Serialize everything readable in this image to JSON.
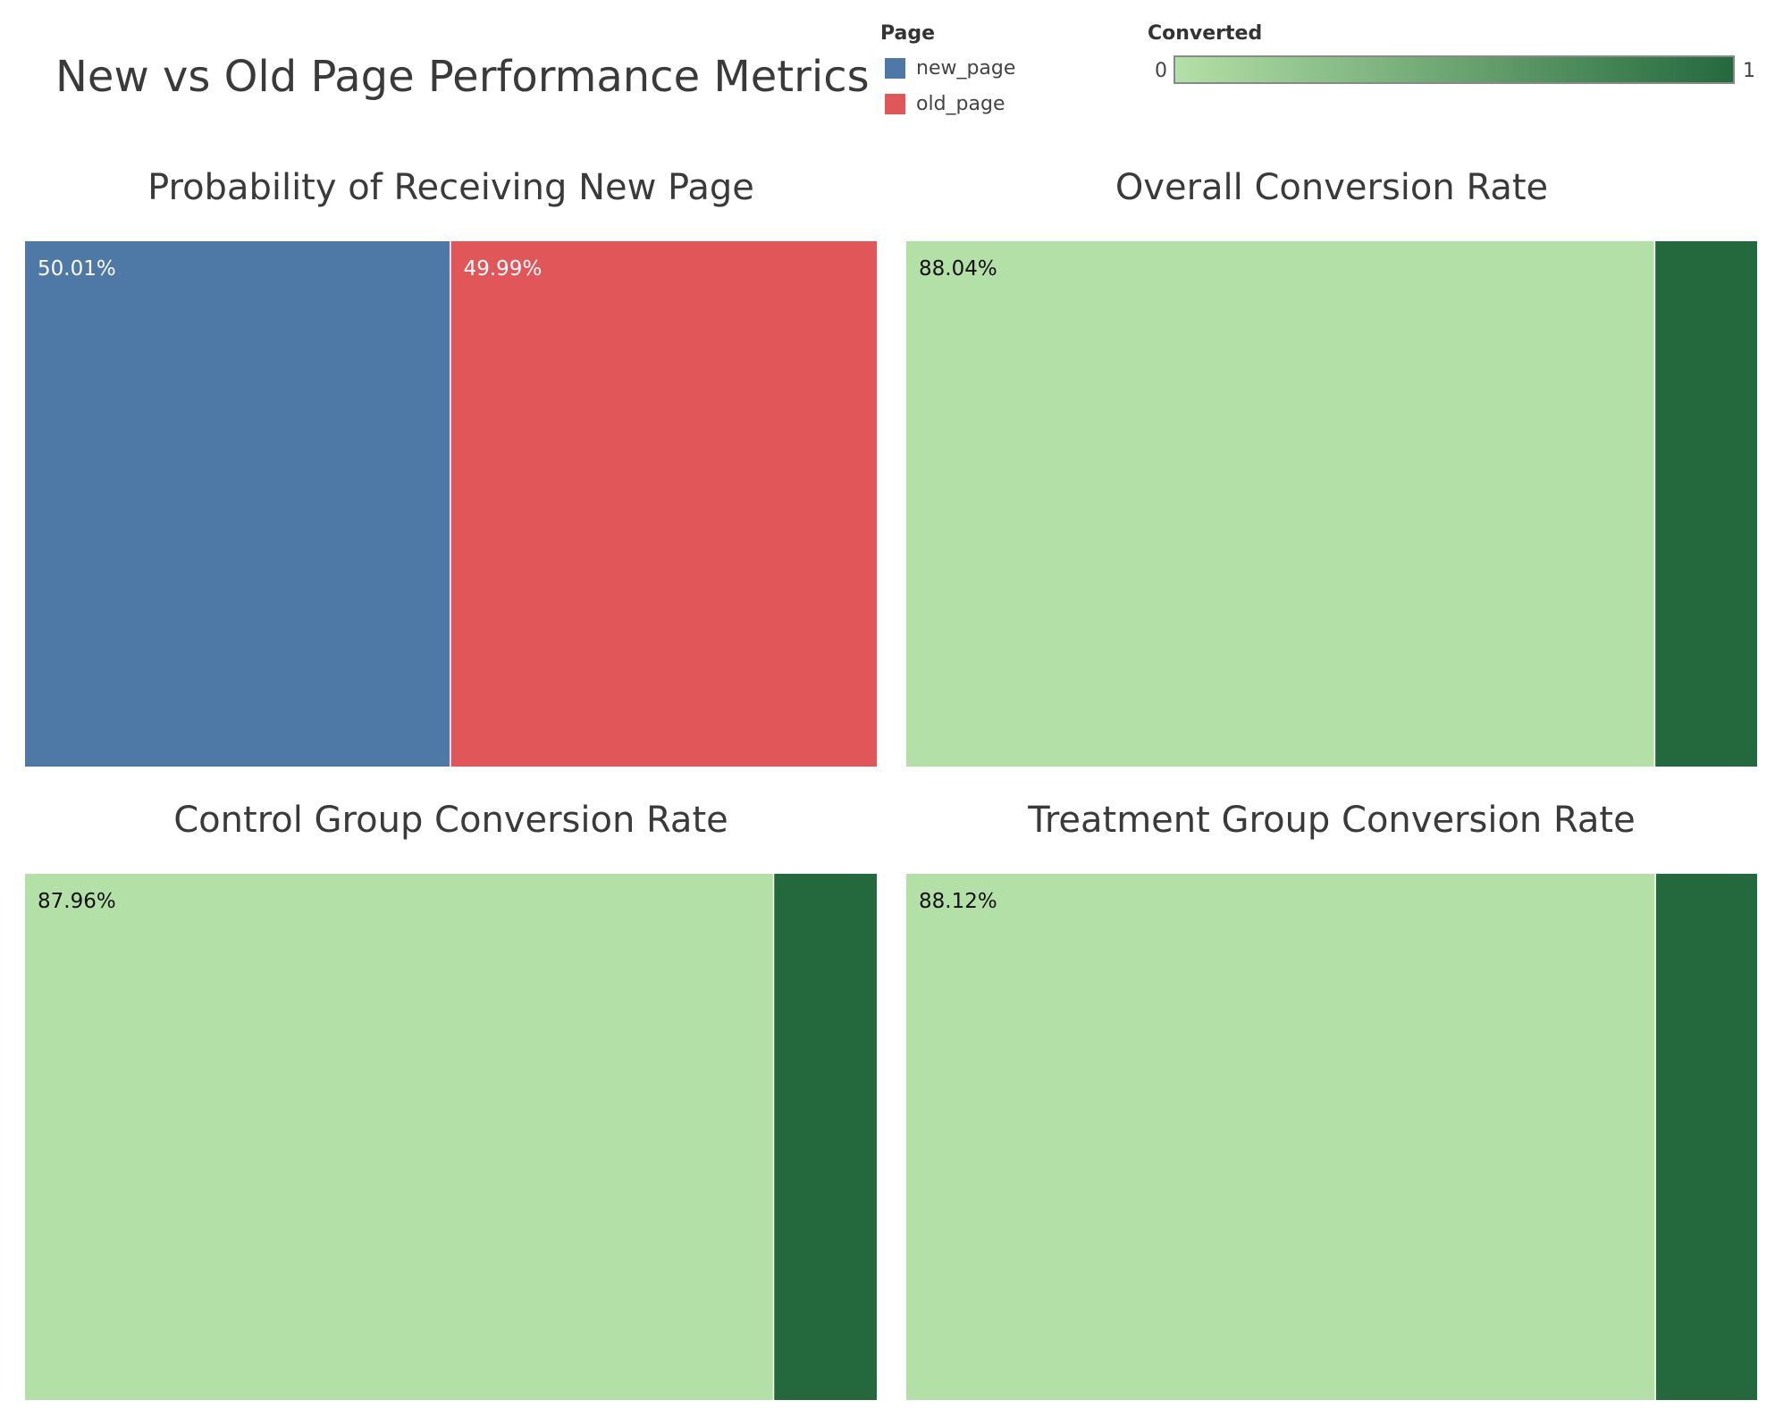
{
  "title": "New vs Old Page Performance Metrics",
  "legend_page": {
    "title": "Page",
    "items": [
      {
        "label": "new_page",
        "color": "#4e79a7"
      },
      {
        "label": "old_page",
        "color": "#e15759"
      }
    ]
  },
  "legend_converted": {
    "title": "Converted",
    "min_label": "0",
    "max_label": "1",
    "color_low": "#b3e0a6",
    "color_high": "#24693d"
  },
  "chart_data": [
    {
      "type": "treemap",
      "title": "Probability of Receiving New Page",
      "segments": [
        {
          "name": "new_page",
          "value": 50.01,
          "label": "50.01%",
          "color": "#4e79a7",
          "label_color": "#ffffff"
        },
        {
          "name": "old_page",
          "value": 49.99,
          "label": "49.99%",
          "color": "#e15759",
          "label_color": "#ffffff"
        }
      ]
    },
    {
      "type": "treemap",
      "title": "Overall Conversion Rate",
      "segments": [
        {
          "name": "0",
          "value": 88.04,
          "label": "88.04%",
          "color": "#b3e0a6",
          "label_color": "#111111"
        },
        {
          "name": "1",
          "value": 11.96,
          "label": "",
          "color": "#24693d",
          "label_color": "#ffffff"
        }
      ]
    },
    {
      "type": "treemap",
      "title": "Control Group Conversion Rate",
      "segments": [
        {
          "name": "0",
          "value": 87.96,
          "label": "87.96%",
          "color": "#b3e0a6",
          "label_color": "#111111"
        },
        {
          "name": "1",
          "value": 12.04,
          "label": "",
          "color": "#24693d",
          "label_color": "#ffffff"
        }
      ]
    },
    {
      "type": "treemap",
      "title": "Treatment Group Conversion Rate",
      "segments": [
        {
          "name": "0",
          "value": 88.12,
          "label": "88.12%",
          "color": "#b3e0a6",
          "label_color": "#111111"
        },
        {
          "name": "1",
          "value": 11.88,
          "label": "",
          "color": "#24693d",
          "label_color": "#ffffff"
        }
      ]
    }
  ]
}
